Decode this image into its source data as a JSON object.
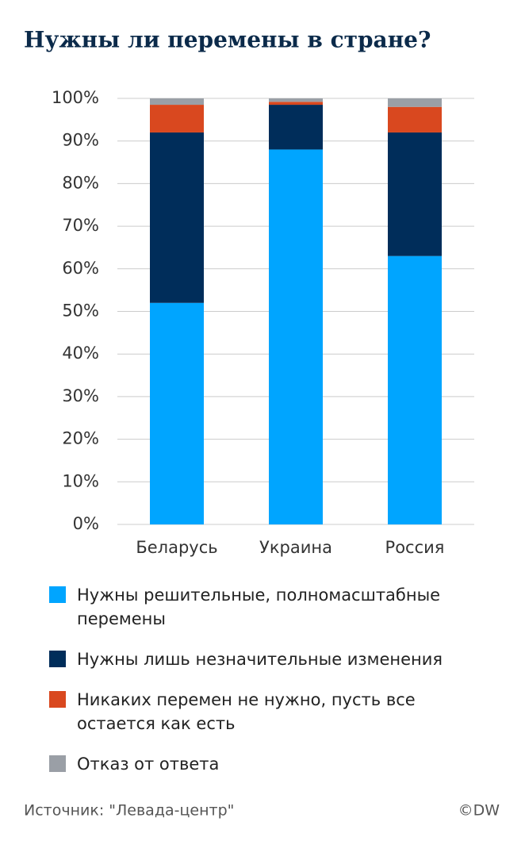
{
  "chart_data": {
    "type": "stacked_bar",
    "title": "Нужны ли перемены в стране?",
    "categories": [
      "Беларусь",
      "Украина",
      "Россия"
    ],
    "series": [
      {
        "name": "Нужны решительные, полномасштабные перемены",
        "color": "#00a5ff",
        "values": [
          52,
          88,
          63
        ]
      },
      {
        "name": "Нужны лишь незначительные изменения",
        "color": "#002d5a",
        "values": [
          40,
          10.5,
          29
        ]
      },
      {
        "name": "Никаких перемен не нужно, пусть все остается как есть",
        "color": "#d9481f",
        "values": [
          6.5,
          0.7,
          6
        ]
      },
      {
        "name": "Отказ от ответа",
        "color": "#9a9fa6",
        "values": [
          1.5,
          0.8,
          2
        ]
      }
    ],
    "ylim": [
      0,
      100
    ],
    "yticks": [
      {
        "value": 0,
        "label": "0%"
      },
      {
        "value": 10,
        "label": "10%"
      },
      {
        "value": 20,
        "label": "20%"
      },
      {
        "value": 30,
        "label": "30%"
      },
      {
        "value": 40,
        "label": "40%"
      },
      {
        "value": 50,
        "label": "50%"
      },
      {
        "value": 60,
        "label": "60%"
      },
      {
        "value": 70,
        "label": "70%"
      },
      {
        "value": 80,
        "label": "80%"
      },
      {
        "value": 90,
        "label": "90%"
      },
      {
        "value": 100,
        "label": "100%"
      }
    ],
    "grid": true,
    "source": "Источник: \"Левада-центр\"",
    "credit": "©DW"
  }
}
